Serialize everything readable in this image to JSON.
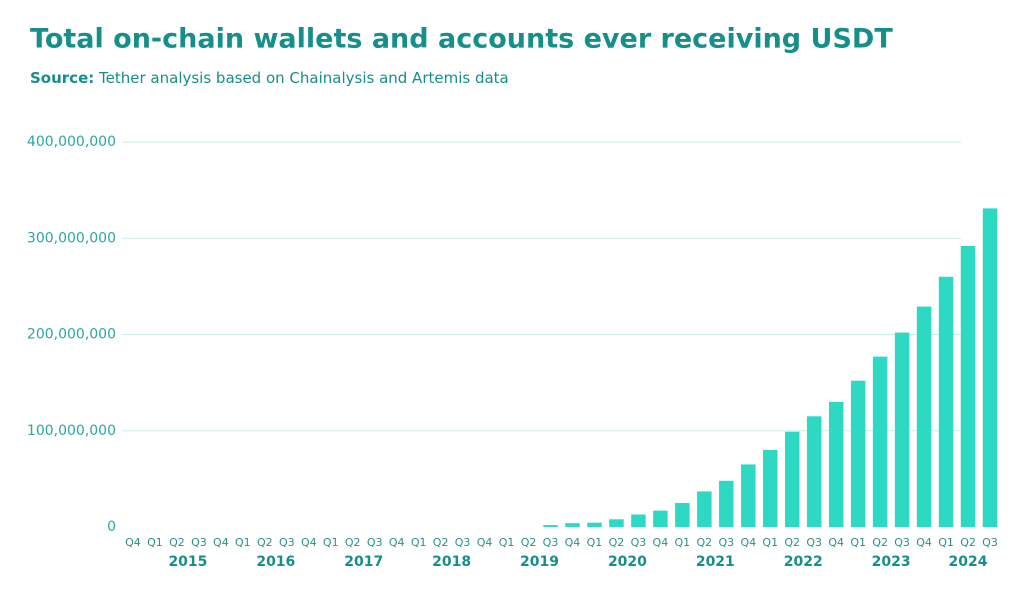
{
  "chart_data": {
    "type": "bar",
    "title": "Total on-chain wallets and accounts ever receiving USDT",
    "source_label": "Source:",
    "source_text": "Tether analysis based on Chainalysis and Artemis data",
    "categories": [
      "Q4",
      "Q1",
      "Q2",
      "Q3",
      "Q4",
      "Q1",
      "Q2",
      "Q3",
      "Q4",
      "Q1",
      "Q2",
      "Q3",
      "Q4",
      "Q1",
      "Q2",
      "Q3",
      "Q4",
      "Q1",
      "Q2",
      "Q3",
      "Q4",
      "Q1",
      "Q2",
      "Q3",
      "Q4",
      "Q1",
      "Q2",
      "Q3",
      "Q4",
      "Q1",
      "Q2",
      "Q3",
      "Q4",
      "Q1",
      "Q2",
      "Q3",
      "Q4",
      "Q1",
      "Q2",
      "Q3"
    ],
    "year_labels": [
      "2015",
      "2016",
      "2017",
      "2018",
      "2019",
      "2020",
      "2021",
      "2022",
      "2023",
      "2024"
    ],
    "values": [
      0,
      0,
      0,
      0,
      0,
      0,
      0,
      0,
      0,
      0,
      0,
      0,
      0,
      0,
      0,
      0,
      0,
      0,
      0,
      2000000,
      4000000,
      4500000,
      8000000,
      13000000,
      17000000,
      25000000,
      37000000,
      48000000,
      65000000,
      80000000,
      99000000,
      115000000,
      130000000,
      152000000,
      177000000,
      202000000,
      229000000,
      260000000,
      292000000,
      331000000
    ],
    "color": "#2ed9c3",
    "ylim": [
      0,
      400000000
    ],
    "yticks": [
      0,
      {
        "value": 100000000,
        "label": "100,000,000"
      },
      {
        "value": 200000000,
        "label": "200,000,000"
      },
      {
        "value": 300000000,
        "label": "300,000,000"
      },
      {
        "value": 400000000,
        "label": "400,000,000"
      }
    ],
    "grid": true
  }
}
